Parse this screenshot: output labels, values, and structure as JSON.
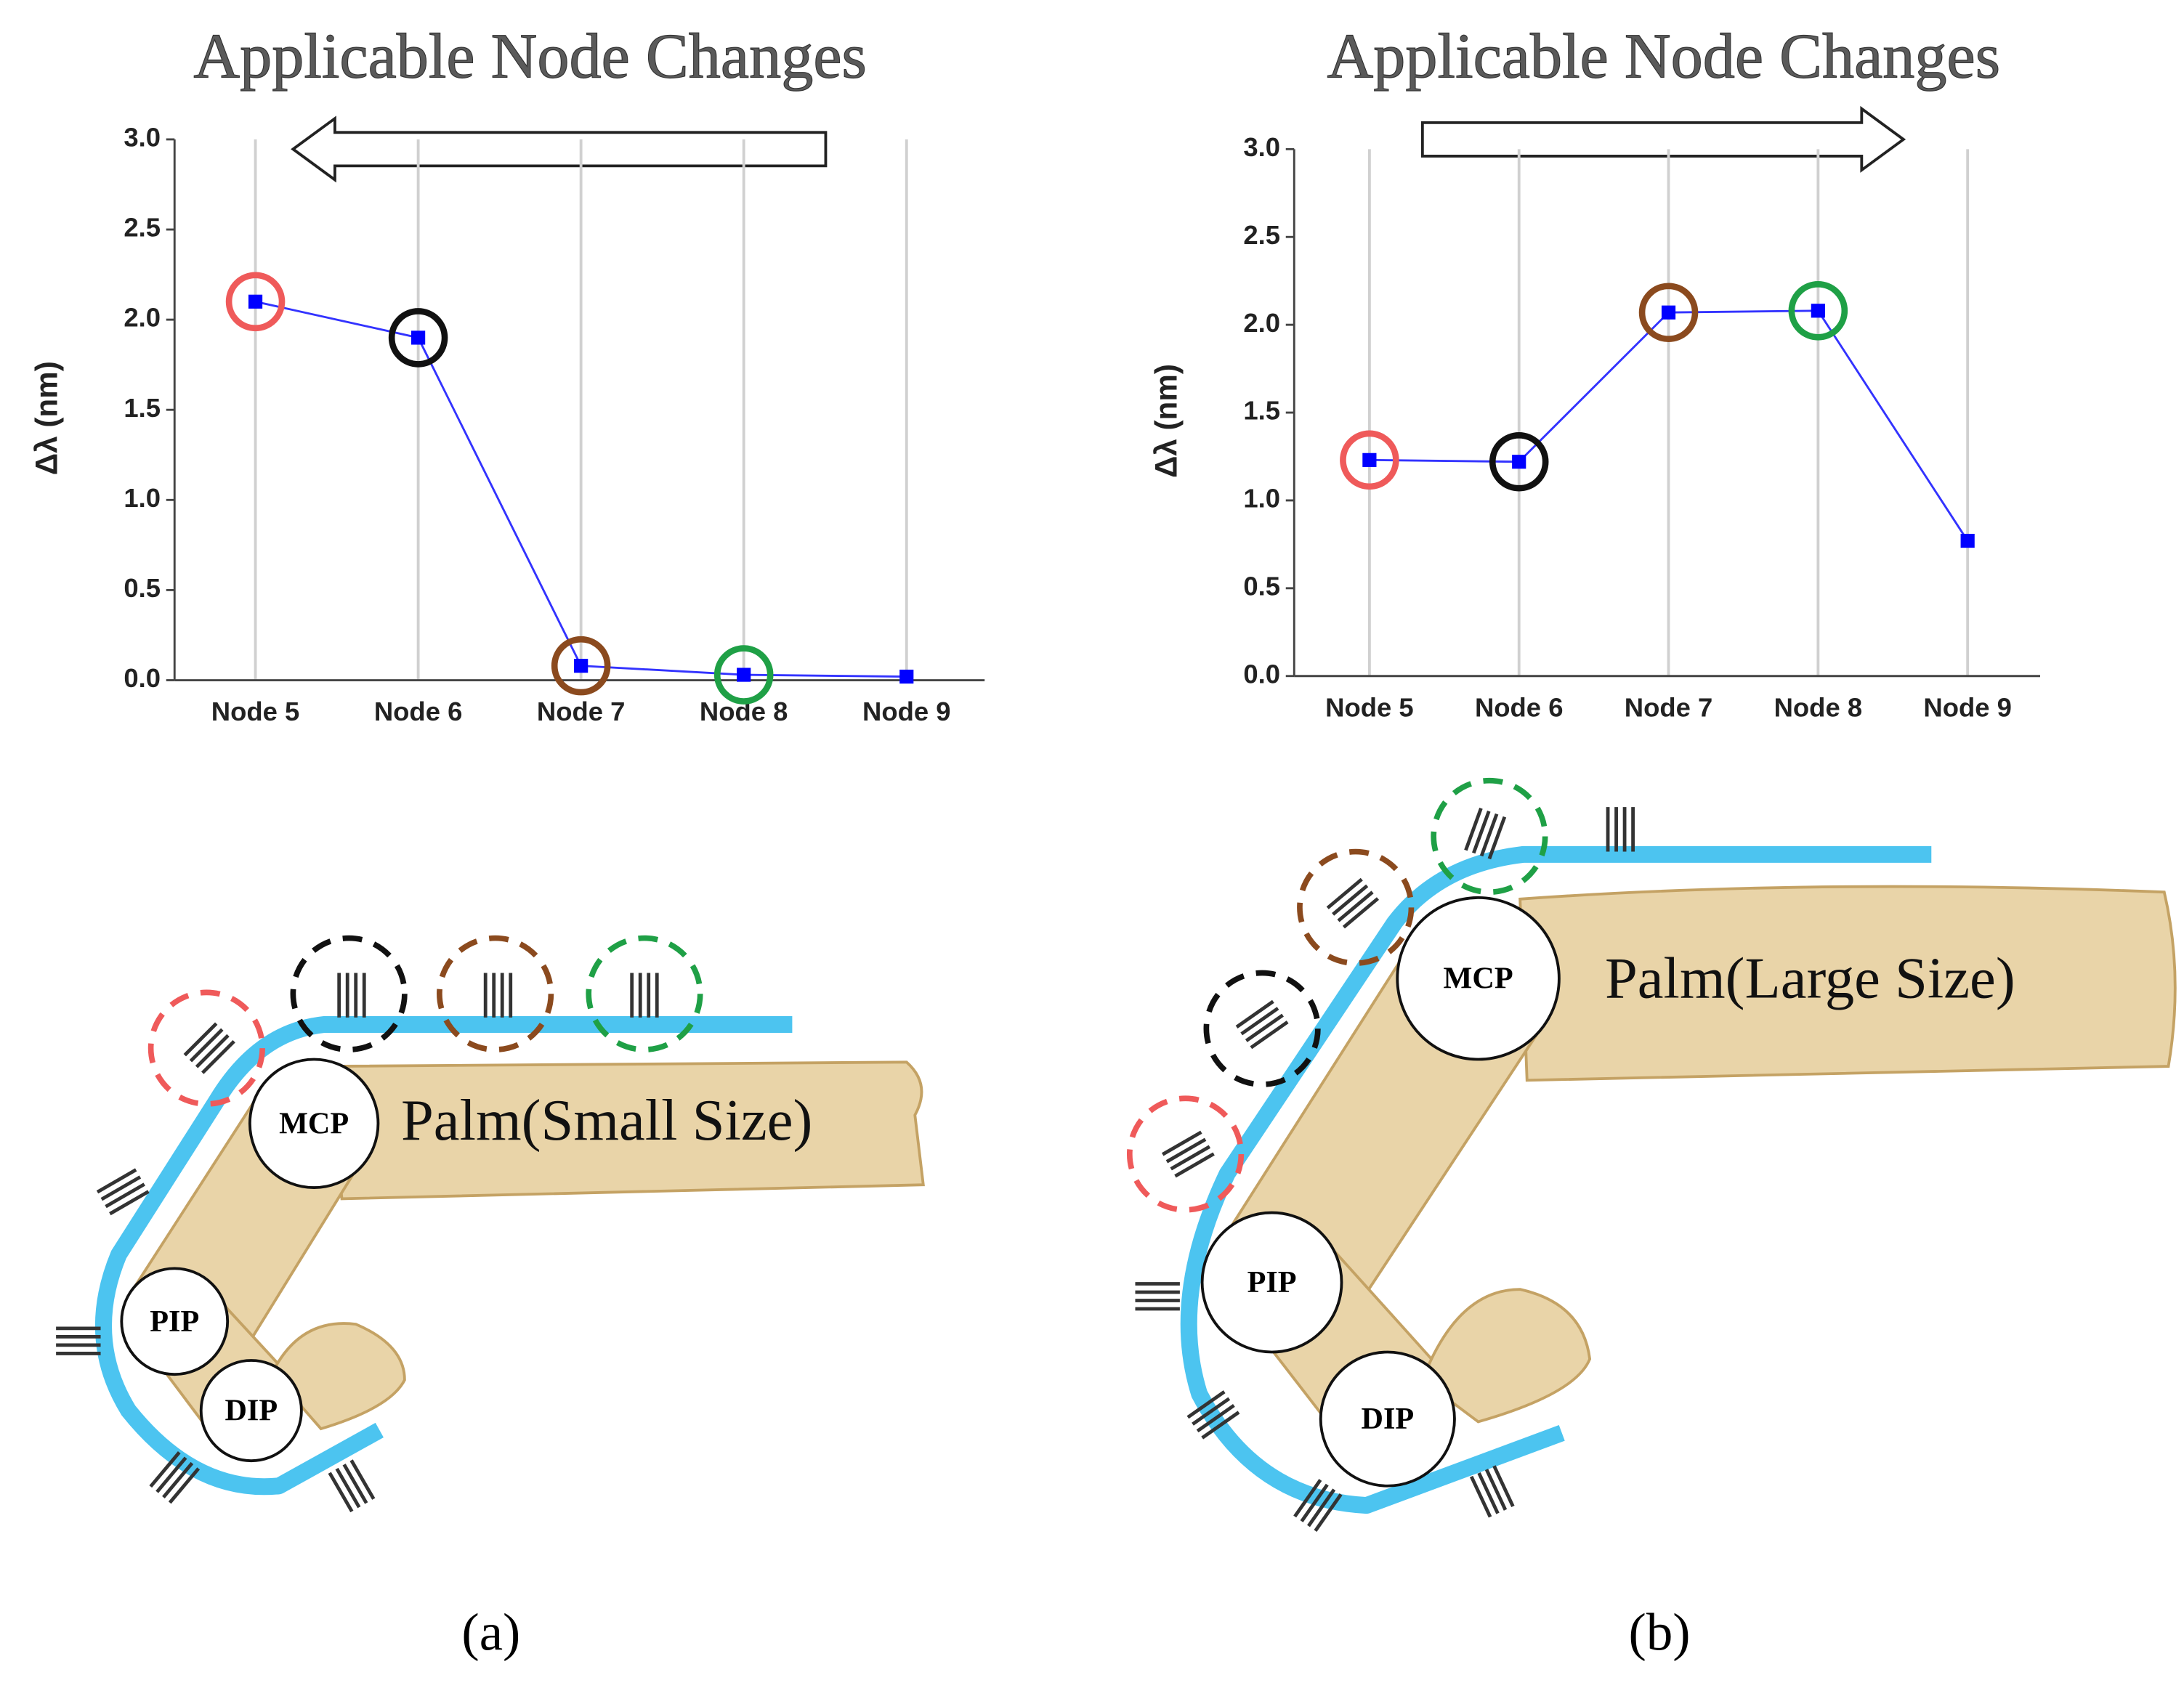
{
  "chart_data": [
    {
      "type": "line",
      "title": "Applicable Node Changes",
      "y_label": "Δλ (nm)",
      "arrow": "left",
      "grid": "x",
      "categories": [
        "Node 5",
        "Node 6",
        "Node 7",
        "Node 8",
        "Node 9"
      ],
      "series": [
        {
          "color": "#0000ff",
          "values": [
            2.1,
            1.9,
            0.08,
            0.03,
            0.02
          ]
        }
      ],
      "ring_colors": [
        "#ef5a5a",
        "#111111",
        "#8b4a1e",
        "#1fa046",
        null
      ],
      "ylim": [
        0,
        3
      ],
      "yticks": [
        {
          "value": 0,
          "label": "0.0"
        },
        0.5,
        {
          "value": 1,
          "label": "1.0"
        },
        1.5,
        {
          "value": 2,
          "label": "2.0"
        },
        2.5,
        {
          "value": 3,
          "label": "3.0"
        }
      ]
    },
    {
      "type": "line",
      "title": "Applicable Node Changes",
      "y_label": "Δλ (nm)",
      "arrow": "right",
      "grid": "x",
      "categories": [
        "Node 5",
        "Node 6",
        "Node 7",
        "Node 8",
        "Node 9"
      ],
      "series": [
        {
          "color": "#0000ff",
          "values": [
            1.23,
            1.22,
            2.07,
            2.08,
            0.77
          ]
        }
      ],
      "ring_colors": [
        "#ef5a5a",
        "#111111",
        "#8b4a1e",
        "#1fa046",
        null
      ],
      "ylim": [
        0,
        3
      ],
      "yticks": [
        {
          "value": 0,
          "label": "0.0"
        },
        0.5,
        {
          "value": 1,
          "label": "1.0"
        },
        1.5,
        {
          "value": 2,
          "label": "2.0"
        },
        2.5,
        {
          "value": 3,
          "label": "3.0"
        }
      ]
    }
  ],
  "diagrams": [
    {
      "palm": "Palm(Small Size)",
      "joints": [
        "MCP",
        "PIP",
        "DIP"
      ],
      "panel": "(a)"
    },
    {
      "palm": "Palm(Large Size)",
      "joints": [
        "MCP",
        "PIP",
        "DIP"
      ],
      "panel": "(b)"
    }
  ]
}
